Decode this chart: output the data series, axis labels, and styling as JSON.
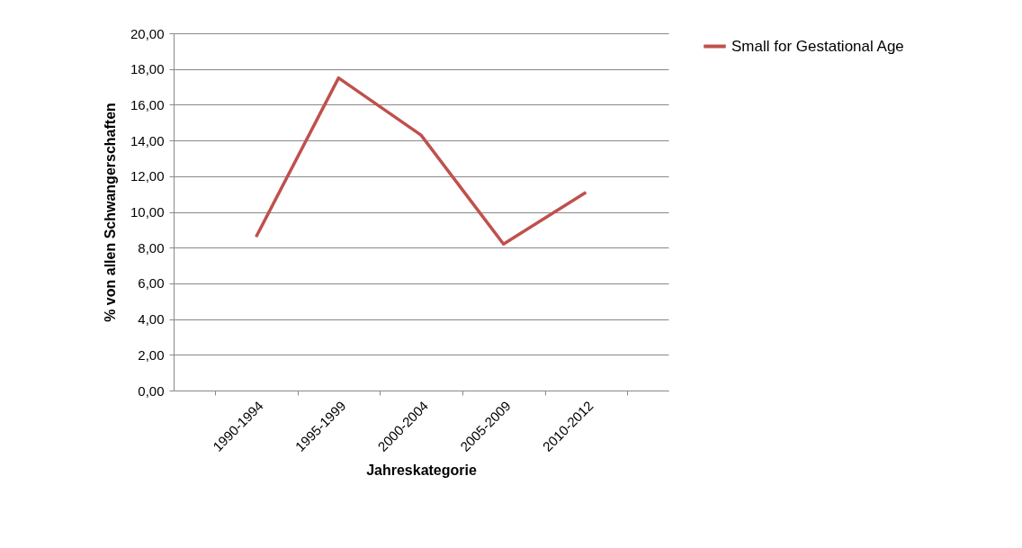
{
  "chart_data": {
    "type": "line",
    "xlabel": "Jahreskategorie",
    "ylabel": "% von allen Schwangerschaften",
    "categories": [
      "1990-1994",
      "1995-1999",
      "2000-2004",
      "2005-2009",
      "2010-2012"
    ],
    "series": [
      {
        "name": "Small for Gestational Age",
        "color": "#c0504d",
        "values": [
          8.6,
          17.5,
          14.3,
          8.2,
          11.1
        ]
      }
    ],
    "ylim": [
      0,
      20
    ],
    "yticks": [
      {
        "value": 0,
        "label": "0,00"
      },
      {
        "value": 2,
        "label": "2,00"
      },
      {
        "value": 4,
        "label": "4,00"
      },
      {
        "value": 6,
        "label": "6,00"
      },
      {
        "value": 8,
        "label": "8,00"
      },
      {
        "value": 10,
        "label": "10,00"
      },
      {
        "value": 12,
        "label": "12,00"
      },
      {
        "value": 14,
        "label": "14,00"
      },
      {
        "value": 16,
        "label": "16,00"
      },
      {
        "value": 18,
        "label": "18,00"
      },
      {
        "value": 20,
        "label": "20,00"
      }
    ],
    "grid": "y",
    "legend": "right"
  }
}
